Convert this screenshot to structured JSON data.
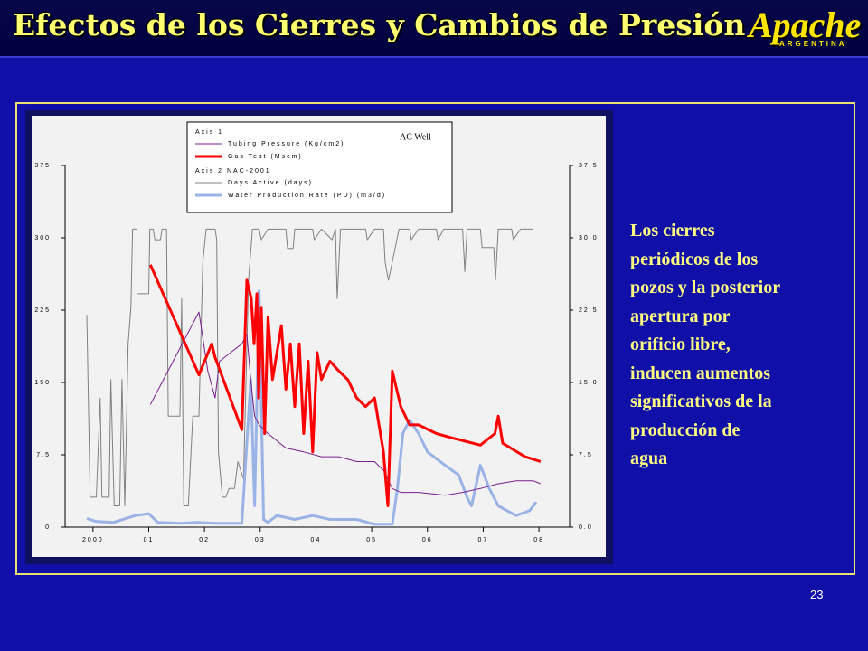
{
  "slide": {
    "title": "Efectos de los Cierres y Cambios de Presión",
    "logo": "Apache",
    "logo_sub": "ARGENTINA",
    "body_lines": [
      "Los cierres",
      "periódicos de los",
      "pozos y la posterior",
      "apertura por",
      "orificio libre,",
      "inducen aumentos",
      "significativos  de la",
      "producción de",
      "agua"
    ],
    "page_number": "23"
  },
  "chart_data": {
    "type": "line",
    "annotation": "AC Well",
    "legend_groups": [
      "Axis 1",
      "Axis 2  NAC-2001"
    ],
    "xlim": [
      1999.5,
      2008.55
    ],
    "xticks": [
      {
        "value": 2000,
        "label": "2000"
      },
      {
        "value": 2001,
        "label": "01"
      },
      {
        "value": 2002,
        "label": "02"
      },
      {
        "value": 2003,
        "label": "03"
      },
      {
        "value": 2004,
        "label": "04"
      },
      {
        "value": 2005,
        "label": "05"
      },
      {
        "value": 2006,
        "label": "06"
      },
      {
        "value": 2007,
        "label": "07"
      },
      {
        "value": 2008,
        "label": "08"
      }
    ],
    "ylim": [
      0,
      37.5
    ],
    "yticks": [
      0,
      7.5,
      {
        "value": 15,
        "label": "150"
      },
      {
        "value": 22.5,
        "label": "225"
      },
      {
        "value": 30,
        "label": "300"
      },
      {
        "value": 37.5,
        "label": "375"
      }
    ],
    "y2lim": [
      0,
      37.5
    ],
    "y2ticks": [
      {
        "value": 0,
        "label": "0.0"
      },
      7.5,
      {
        "value": 15,
        "label": "15.0"
      },
      22.5,
      {
        "value": 30,
        "label": "30.0"
      },
      37.5
    ],
    "series": [
      {
        "name": "Tubing Pressure (Kg/cm2)",
        "group": 0,
        "color": "#7a1f8f",
        "width": 1,
        "x": [
          2001.03,
          2001.9,
          2002.06,
          2002.19,
          2002.27,
          2002.67,
          2002.76,
          2002.83,
          2002.9,
          2002.98,
          2003.14,
          2003.46,
          2003.78,
          2004.1,
          2004.41,
          2004.73,
          2005.05,
          2005.21,
          2005.37,
          2005.52,
          2005.84,
          2006.32,
          2006.63,
          2006.95,
          2007.27,
          2007.59,
          2007.9,
          2008.03
        ],
        "values": [
          12.7,
          22.3,
          16.2,
          13.4,
          17.2,
          19.0,
          20.0,
          15.3,
          11.5,
          10.6,
          9.7,
          8.2,
          7.8,
          7.3,
          7.3,
          6.8,
          6.8,
          5.9,
          4.0,
          3.6,
          3.6,
          3.3,
          3.6,
          4.0,
          4.5,
          4.8,
          4.8,
          4.5
        ]
      },
      {
        "name": "Gas Test (Mscm)",
        "group": 0,
        "color": "#ff0000",
        "width": 3,
        "x": [
          2001.03,
          2001.9,
          2002.13,
          2002.19,
          2002.67,
          2002.76,
          2002.84,
          2002.89,
          2002.94,
          2002.97,
          2003.02,
          2003.08,
          2003.14,
          2003.22,
          2003.3,
          2003.38,
          2003.46,
          2003.54,
          2003.62,
          2003.7,
          2003.78,
          2003.86,
          2003.94,
          2004.02,
          2004.1,
          2004.25,
          2004.41,
          2004.57,
          2004.73,
          2004.89,
          2005.05,
          2005.21,
          2005.29,
          2005.37,
          2005.52,
          2005.68,
          2005.84,
          2006.16,
          2006.48,
          2006.95,
          2007.21,
          2007.27,
          2007.35,
          2007.75,
          2008.03
        ],
        "values": [
          27.2,
          15.8,
          19.0,
          17.6,
          10.1,
          25.6,
          23.7,
          19.0,
          24.2,
          13.4,
          22.8,
          9.7,
          21.8,
          15.3,
          18.1,
          20.9,
          14.3,
          19.0,
          12.5,
          19.0,
          9.7,
          17.2,
          7.8,
          18.1,
          15.3,
          17.2,
          16.2,
          15.3,
          13.4,
          12.5,
          13.4,
          7.8,
          2.2,
          16.2,
          12.5,
          10.6,
          10.6,
          9.7,
          9.2,
          8.5,
          9.7,
          11.5,
          8.7,
          7.3,
          6.8
        ]
      },
      {
        "name": "Days Active (days)",
        "group": 1,
        "axis": "y2",
        "color": "#808080",
        "width": 1,
        "x": [
          1999.89,
          1999.95,
          2000.06,
          2000.13,
          2000.16,
          2000.29,
          2000.32,
          2000.38,
          2000.48,
          2000.52,
          2000.57,
          2000.63,
          2000.68,
          2000.71,
          2000.79,
          2000.79,
          2001.0,
          2001.02,
          2001.08,
          2001.11,
          2001.21,
          2001.24,
          2001.32,
          2001.35,
          2001.56,
          2001.59,
          2001.63,
          2001.71,
          2001.79,
          2001.9,
          2001.97,
          2002.03,
          2002.19,
          2002.22,
          2002.25,
          2002.32,
          2002.38,
          2002.44,
          2002.54,
          2002.6,
          2002.7,
          2002.79,
          2002.86,
          2002.98,
          2003.02,
          2003.14,
          2003.46,
          2003.49,
          2003.59,
          2003.62,
          2003.94,
          2003.97,
          2004.1,
          2004.29,
          2004.35,
          2004.38,
          2004.44,
          2004.89,
          2004.92,
          2005.05,
          2005.21,
          2005.24,
          2005.3,
          2005.37,
          2005.49,
          2005.68,
          2005.71,
          2005.84,
          2006.16,
          2006.19,
          2006.29,
          2006.63,
          2006.67,
          2006.71,
          2006.95,
          2006.98,
          2007.19,
          2007.22,
          2007.27,
          2007.51,
          2007.54,
          2007.67,
          2007.9
        ],
        "values": [
          22.0,
          3.1,
          3.1,
          13.4,
          3.1,
          3.1,
          15.3,
          2.2,
          2.2,
          15.3,
          2.2,
          19.0,
          22.8,
          30.9,
          30.9,
          24.2,
          24.2,
          30.9,
          30.9,
          29.8,
          29.8,
          30.9,
          30.9,
          11.5,
          11.5,
          23.7,
          2.2,
          2.2,
          11.5,
          11.5,
          27.5,
          30.9,
          30.9,
          29.8,
          7.8,
          3.1,
          3.1,
          4.0,
          4.0,
          6.8,
          5.0,
          25.6,
          30.9,
          30.9,
          29.8,
          30.9,
          30.9,
          28.9,
          28.9,
          30.9,
          30.9,
          29.8,
          30.9,
          29.8,
          30.9,
          23.7,
          30.9,
          30.9,
          29.8,
          30.9,
          30.9,
          27.5,
          25.6,
          27.5,
          30.9,
          30.9,
          29.8,
          30.9,
          30.9,
          29.8,
          30.9,
          30.9,
          26.5,
          30.9,
          30.9,
          29.0,
          29.0,
          25.6,
          30.9,
          30.9,
          29.8,
          30.9,
          30.9
        ]
      },
      {
        "name": "Water Production Rate (PD) (m3/d)",
        "group": 1,
        "axis": "y2",
        "color": "#99b3e6",
        "width": 3,
        "x": [
          1999.89,
          2000.05,
          2000.37,
          2000.76,
          2001.0,
          2001.16,
          2001.56,
          2001.87,
          2002.19,
          2002.67,
          2002.83,
          2002.9,
          2002.98,
          2003.06,
          2003.14,
          2003.3,
          2003.62,
          2003.94,
          2004.25,
          2004.73,
          2005.05,
          2005.37,
          2005.46,
          2005.56,
          2005.68,
          2005.84,
          2006.0,
          2006.32,
          2006.56,
          2006.71,
          2006.79,
          2006.95,
          2007.11,
          2007.27,
          2007.43,
          2007.59,
          2007.83,
          2007.95
        ],
        "values": [
          0.9,
          0.6,
          0.5,
          1.2,
          1.4,
          0.5,
          0.4,
          0.5,
          0.4,
          0.4,
          15.3,
          2.2,
          24.5,
          0.8,
          0.5,
          1.2,
          0.8,
          1.2,
          0.8,
          0.8,
          0.3,
          0.3,
          4.0,
          9.7,
          11.1,
          9.7,
          7.8,
          6.4,
          5.4,
          3.1,
          2.2,
          6.4,
          4.0,
          2.2,
          1.7,
          1.2,
          1.7,
          2.6
        ]
      }
    ]
  }
}
